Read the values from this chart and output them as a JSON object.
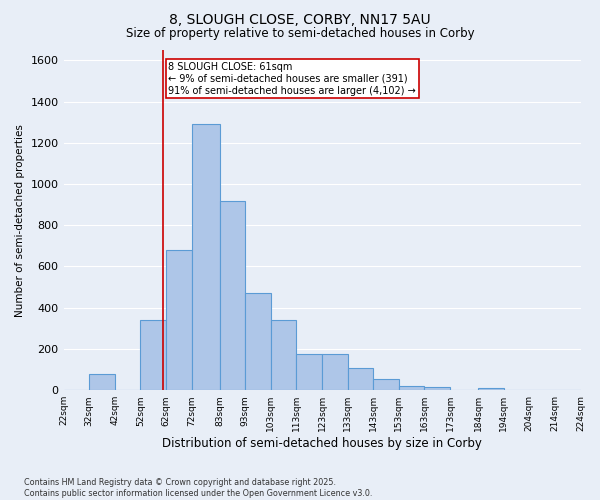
{
  "title_line1": "8, SLOUGH CLOSE, CORBY, NN17 5AU",
  "title_line2": "Size of property relative to semi-detached houses in Corby",
  "xlabel": "Distribution of semi-detached houses by size in Corby",
  "ylabel": "Number of semi-detached properties",
  "footnote": "Contains HM Land Registry data © Crown copyright and database right 2025.\nContains public sector information licensed under the Open Government Licence v3.0.",
  "bin_edges": [
    22,
    32,
    42,
    52,
    62,
    72,
    83,
    93,
    103,
    113,
    123,
    133,
    143,
    153,
    163,
    173,
    184,
    194,
    204,
    214,
    224
  ],
  "bar_heights": [
    0,
    80,
    0,
    340,
    680,
    1290,
    920,
    470,
    340,
    175,
    175,
    110,
    55,
    20,
    15,
    0,
    10,
    0,
    0,
    0
  ],
  "bar_color": "#aec6e8",
  "bar_edgecolor": "#5b9bd5",
  "tick_labels": [
    "22sqm",
    "32sqm",
    "42sqm",
    "52sqm",
    "62sqm",
    "72sqm",
    "83sqm",
    "93sqm",
    "103sqm",
    "113sqm",
    "123sqm",
    "133sqm",
    "143sqm",
    "153sqm",
    "163sqm",
    "173sqm",
    "184sqm",
    "194sqm",
    "204sqm",
    "214sqm",
    "224sqm"
  ],
  "vline_x": 61,
  "vline_color": "#cc0000",
  "annotation_text": "8 SLOUGH CLOSE: 61sqm\n← 9% of semi-detached houses are smaller (391)\n91% of semi-detached houses are larger (4,102) →",
  "ylim": [
    0,
    1650
  ],
  "xlim": [
    22,
    224
  ],
  "yticks": [
    0,
    200,
    400,
    600,
    800,
    1000,
    1200,
    1400,
    1600
  ],
  "bg_color": "#e8eef7",
  "grid_color": "#ffffff",
  "box_facecolor": "#ffffff",
  "box_edgecolor": "#cc0000",
  "fig_width": 6.0,
  "fig_height": 5.0
}
